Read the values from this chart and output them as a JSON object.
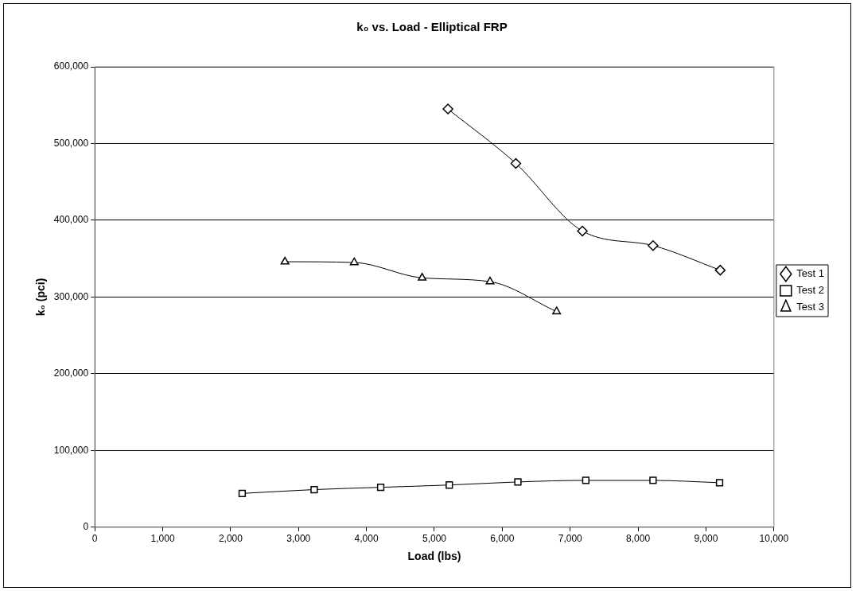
{
  "chart_data": {
    "type": "line",
    "title": "k₀ vs. Load - Elliptical FRP",
    "xlabel": "Load (lbs)",
    "ylabel": "k₀ (pci)",
    "xlim": [
      0,
      10000
    ],
    "xticks": [
      {
        "value": 0,
        "label": "0"
      },
      {
        "value": 1000,
        "label": "1,000"
      },
      {
        "value": 2000,
        "label": "2,000"
      },
      {
        "value": 3000,
        "label": "3,000"
      },
      {
        "value": 4000,
        "label": "4,000"
      },
      {
        "value": 5000,
        "label": "5,000"
      },
      {
        "value": 6000,
        "label": "6,000"
      },
      {
        "value": 7000,
        "label": "7,000"
      },
      {
        "value": 8000,
        "label": "8,000"
      },
      {
        "value": 9000,
        "label": "9,000"
      },
      {
        "value": 10000,
        "label": "10,000"
      }
    ],
    "ylim": [
      0,
      600000
    ],
    "yticks": [
      {
        "value": 0,
        "label": "0"
      },
      {
        "value": 100000,
        "label": "100,000"
      },
      {
        "value": 200000,
        "label": "200,000"
      },
      {
        "value": 300000,
        "label": "300,000"
      },
      {
        "value": 400000,
        "label": "400,000"
      },
      {
        "value": 500000,
        "label": "500,000"
      },
      {
        "value": 600000,
        "label": "600,000"
      }
    ],
    "grid": "y",
    "legend": "right",
    "series": [
      {
        "name": "Test 1",
        "color": "#000000",
        "marker": "diamond",
        "x": [
          5200,
          6200,
          7180,
          8220,
          9210
        ],
        "values": [
          545000,
          474000,
          386000,
          367000,
          335000
        ]
      },
      {
        "name": "Test 2",
        "color": "#000000",
        "marker": "square",
        "x": [
          2170,
          3230,
          4210,
          5220,
          6230,
          7230,
          8220,
          9200
        ],
        "values": [
          44000,
          49000,
          52000,
          55000,
          59000,
          61000,
          61000,
          58000
        ]
      },
      {
        "name": "Test 3",
        "color": "#000000",
        "marker": "triangle",
        "x": [
          2800,
          3820,
          4820,
          5820,
          6800
        ],
        "values": [
          346000,
          345000,
          325000,
          320000,
          281000
        ]
      }
    ]
  }
}
